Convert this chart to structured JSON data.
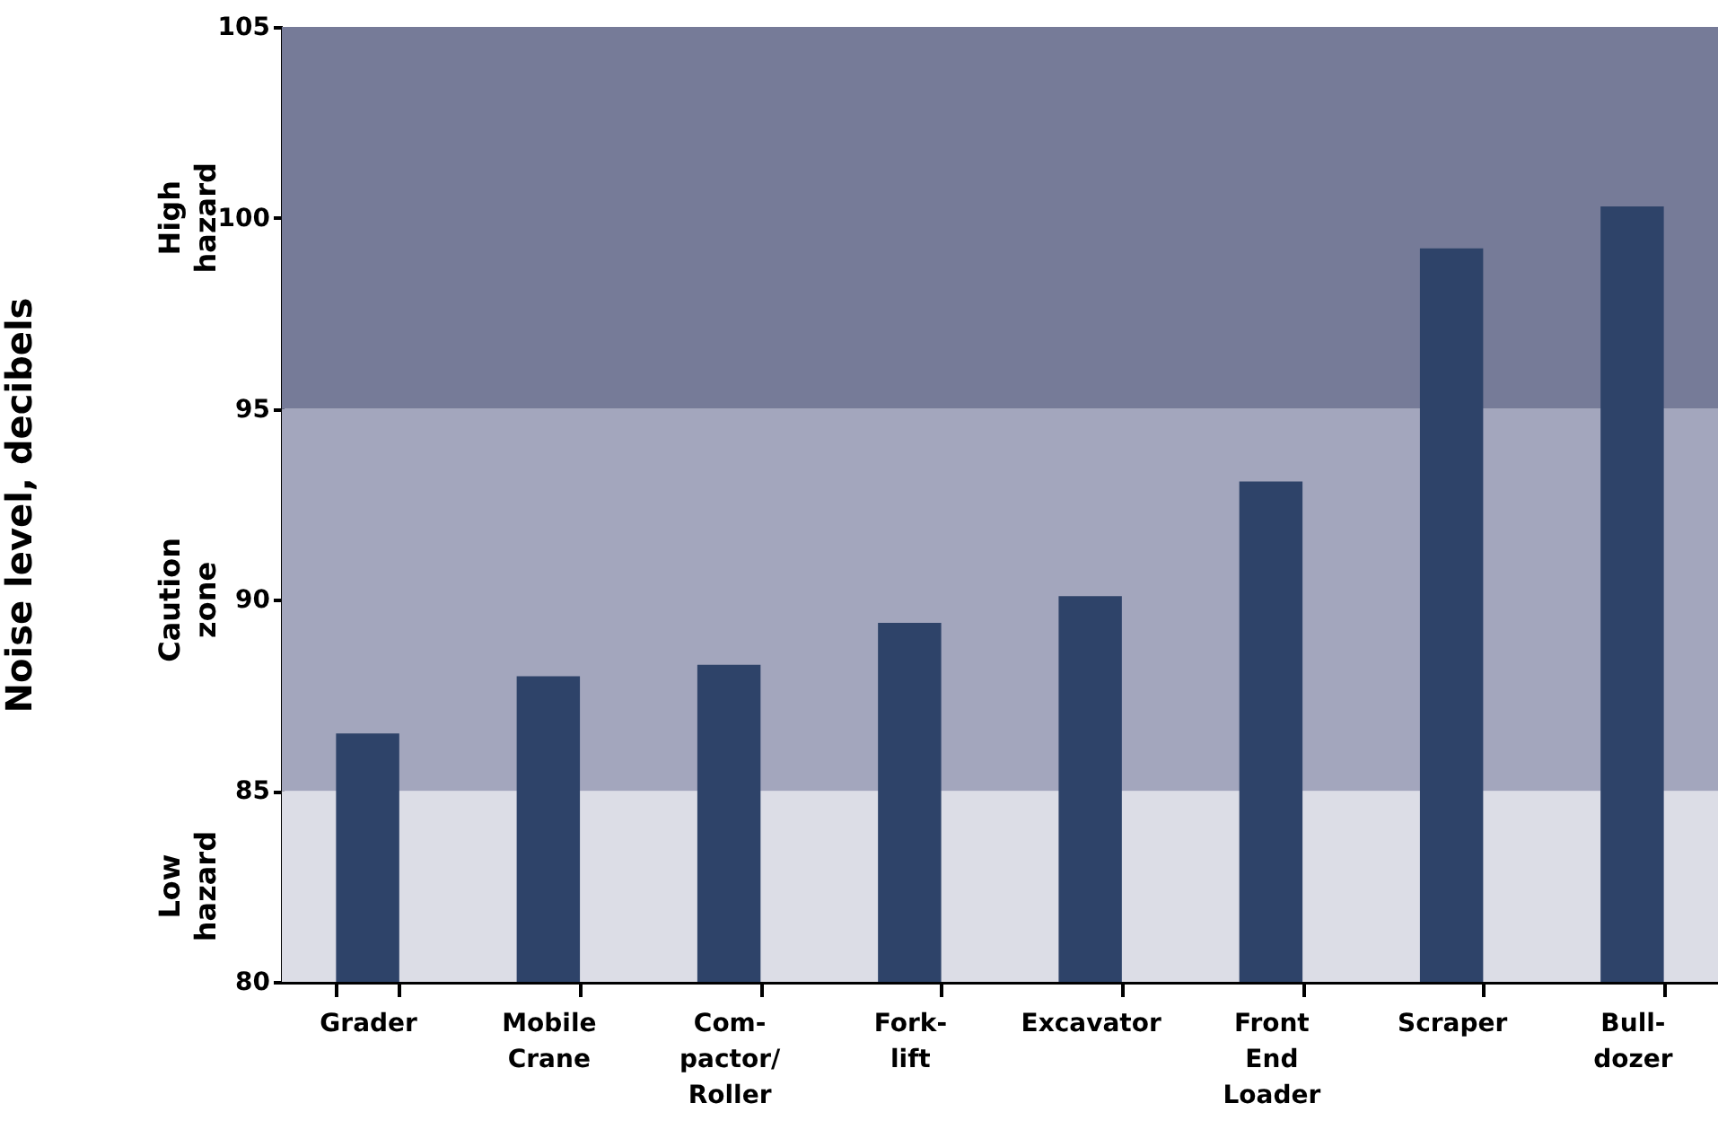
{
  "chart_data": {
    "type": "bar",
    "ylabel": "Noise level, decibels",
    "categories": [
      "Grader",
      "Mobile Crane",
      "Com- pactor/ Roller",
      "Fork- lift",
      "Excavator",
      "Front End Loader",
      "Scraper",
      "Bull- dozer"
    ],
    "values": [
      86.5,
      88.0,
      88.3,
      89.4,
      90.1,
      93.1,
      99.2,
      100.3
    ],
    "color": "#2e4369",
    "ylim": [
      80,
      105
    ],
    "yticks": [
      80,
      85,
      90,
      95,
      100,
      105
    ],
    "bands": [
      {
        "axis": "y",
        "from": 80,
        "to": 85,
        "label": "Low hazard",
        "color": "#dcdde6"
      },
      {
        "axis": "y",
        "from": 85,
        "to": 95,
        "label": "Caution zone",
        "color": "#a3a6bd"
      },
      {
        "axis": "y",
        "from": 95,
        "to": 105,
        "label": "High hazard",
        "color": "#767b98"
      }
    ]
  }
}
